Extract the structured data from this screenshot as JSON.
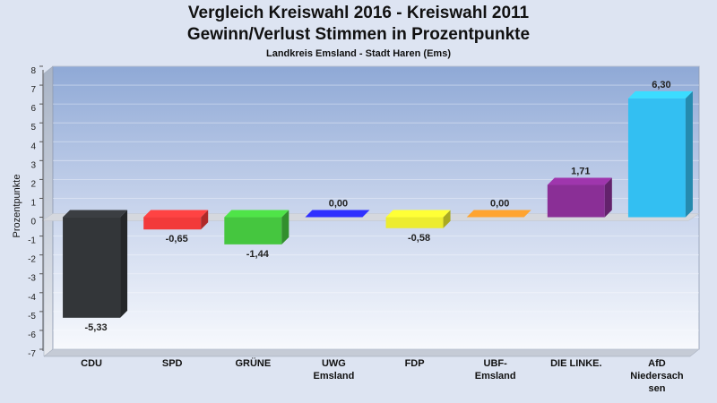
{
  "chart_data": {
    "type": "bar",
    "title": "Vergleich Kreiswahl 2016 - Kreiswahl 2011",
    "subtitle": "Gewinn/Verlust Stimmen in Prozentpunkte",
    "caption": "Landkreis Emsland - Stadt Haren (Ems)",
    "ylabel": "Prozentpunkte",
    "xlabel": "",
    "ylim": [
      -7,
      8
    ],
    "yticks": [
      8,
      7,
      6,
      5,
      4,
      3,
      2,
      1,
      0,
      -1,
      -2,
      -3,
      -4,
      -5,
      -6,
      -7
    ],
    "grid": true,
    "categories": [
      [
        "CDU"
      ],
      [
        "SPD"
      ],
      [
        "GRÜNE"
      ],
      [
        "UWG",
        "Emsland"
      ],
      [
        "FDP"
      ],
      [
        "UBF-",
        "Emsland"
      ],
      [
        "DIE LINKE."
      ],
      [
        "AfD",
        "Niedersach",
        "sen"
      ]
    ],
    "values": [
      -5.33,
      -0.65,
      -1.44,
      0.0,
      -0.58,
      0.0,
      1.71,
      6.3
    ],
    "value_labels": [
      "-5,33",
      "-0,65",
      "-1,44",
      "0,00",
      "-0,58",
      "0,00",
      "1,71",
      "6,30"
    ],
    "colors": [
      "#333639",
      "#f23a3a",
      "#45c63f",
      "#2a2ae8",
      "#ecec2f",
      "#f78f2a",
      "#8a2f96",
      "#33bff2"
    ]
  }
}
